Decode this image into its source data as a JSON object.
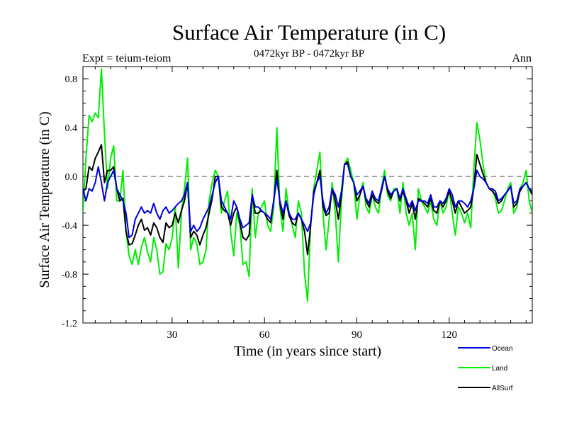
{
  "chart_data": {
    "type": "line",
    "title": "Surface Air Temperature (in C)",
    "subtitle": "0472kyr BP - 0472kyr BP",
    "expt_label": "Expt = teium-teiom",
    "season_label": "Ann",
    "xlabel": "Time (in years since start)",
    "ylabel": "Surface Air Temperature (in C)",
    "xlim": [
      1,
      147
    ],
    "ylim": [
      -1.2,
      0.9
    ],
    "x_ticks": [
      30,
      60,
      90,
      120
    ],
    "y_ticks": [
      -1.2,
      -0.8,
      -0.4,
      0.0,
      0.4,
      0.8
    ],
    "y_tick_labels": [
      "-1.2",
      "-0.8",
      "-0.4",
      "0.0",
      "0.4",
      "0.8"
    ],
    "x_tick_labels": [
      "30",
      "60",
      "90",
      "120"
    ],
    "reference_line": 0.0,
    "x": [
      1,
      2,
      3,
      4,
      5,
      6,
      7,
      8,
      9,
      10,
      11,
      12,
      13,
      14,
      15,
      16,
      17,
      18,
      19,
      20,
      21,
      22,
      23,
      24,
      25,
      26,
      27,
      28,
      29,
      30,
      31,
      32,
      33,
      34,
      35,
      36,
      37,
      38,
      39,
      40,
      41,
      42,
      43,
      44,
      45,
      46,
      47,
      48,
      49,
      50,
      51,
      52,
      53,
      54,
      55,
      56,
      57,
      58,
      59,
      60,
      61,
      62,
      63,
      64,
      65,
      66,
      67,
      68,
      69,
      70,
      71,
      72,
      73,
      74,
      75,
      76,
      77,
      78,
      79,
      80,
      81,
      82,
      83,
      84,
      85,
      86,
      87,
      88,
      89,
      90,
      91,
      92,
      93,
      94,
      95,
      96,
      97,
      98,
      99,
      100,
      101,
      102,
      103,
      104,
      105,
      106,
      107,
      108,
      109,
      110,
      111,
      112,
      113,
      114,
      115,
      116,
      117,
      118,
      119,
      120,
      121,
      122,
      123,
      124,
      125,
      126,
      127,
      128,
      129,
      130,
      131,
      132,
      133,
      134,
      135,
      136,
      137,
      138,
      139,
      140,
      141,
      142,
      143,
      144,
      145,
      146,
      147
    ],
    "series": [
      {
        "name": "Land",
        "color": "#00ee00",
        "values": [
          -0.3,
          0.15,
          0.5,
          0.45,
          0.52,
          0.48,
          0.88,
          0.35,
          -0.1,
          0.15,
          0.25,
          -0.2,
          -0.2,
          0.05,
          -0.45,
          -0.65,
          -0.72,
          -0.6,
          -0.72,
          -0.58,
          -0.5,
          -0.62,
          -0.7,
          -0.5,
          -0.6,
          -0.8,
          -0.78,
          -0.55,
          -0.6,
          -0.5,
          -0.25,
          -0.75,
          -0.3,
          -0.1,
          0.15,
          -0.6,
          -0.5,
          -0.55,
          -0.72,
          -0.7,
          -0.6,
          -0.2,
          -0.05,
          0.05,
          0.0,
          -0.3,
          -0.2,
          -0.12,
          -0.45,
          -0.65,
          -0.3,
          -0.4,
          -0.72,
          -0.7,
          -0.82,
          -0.1,
          -0.5,
          -0.3,
          -0.25,
          -0.2,
          -0.4,
          -0.45,
          -0.25,
          0.4,
          -0.25,
          -0.45,
          -0.1,
          -0.3,
          -0.4,
          -0.5,
          -0.2,
          -0.3,
          -0.8,
          -1.02,
          -0.4,
          -0.1,
          0.05,
          0.2,
          -0.3,
          -0.6,
          -0.35,
          -0.05,
          -0.3,
          -0.7,
          -0.2,
          0.1,
          0.15,
          0.05,
          -0.05,
          -0.35,
          -0.15,
          -0.05,
          -0.25,
          -0.3,
          -0.15,
          -0.25,
          -0.3,
          -0.1,
          0.05,
          -0.15,
          -0.2,
          -0.1,
          -0.1,
          -0.3,
          -0.05,
          -0.3,
          -0.4,
          -0.3,
          -0.6,
          -0.1,
          -0.2,
          -0.25,
          -0.3,
          -0.2,
          -0.35,
          -0.4,
          -0.2,
          -0.3,
          -0.25,
          -0.1,
          -0.3,
          -0.48,
          -0.25,
          -0.3,
          -0.38,
          -0.3,
          -0.42,
          0.05,
          0.44,
          0.3,
          0.1,
          -0.05,
          -0.1,
          -0.1,
          -0.18,
          -0.3,
          -0.28,
          -0.2,
          -0.1,
          -0.05,
          -0.3,
          -0.25,
          -0.1,
          -0.05,
          0.05,
          -0.2,
          -0.3
        ]
      },
      {
        "name": "AllSurf",
        "color": "#000000",
        "values": [
          -0.12,
          -0.1,
          0.08,
          0.05,
          0.15,
          0.2,
          0.26,
          -0.05,
          0.05,
          0.05,
          0.08,
          -0.1,
          -0.2,
          -0.18,
          -0.45,
          -0.56,
          -0.55,
          -0.48,
          -0.4,
          -0.35,
          -0.44,
          -0.42,
          -0.48,
          -0.38,
          -0.42,
          -0.5,
          -0.54,
          -0.38,
          -0.42,
          -0.4,
          -0.3,
          -0.38,
          -0.28,
          -0.2,
          -0.05,
          -0.5,
          -0.45,
          -0.48,
          -0.56,
          -0.48,
          -0.42,
          -0.3,
          -0.18,
          0.0,
          0.0,
          -0.25,
          -0.28,
          -0.3,
          -0.4,
          -0.3,
          -0.25,
          -0.38,
          -0.5,
          -0.52,
          -0.48,
          -0.15,
          -0.3,
          -0.3,
          -0.28,
          -0.3,
          -0.35,
          -0.38,
          -0.2,
          0.05,
          -0.22,
          -0.35,
          -0.2,
          -0.32,
          -0.38,
          -0.4,
          -0.3,
          -0.35,
          -0.45,
          -0.64,
          -0.4,
          -0.12,
          -0.05,
          0.05,
          -0.25,
          -0.32,
          -0.3,
          -0.1,
          -0.2,
          -0.35,
          -0.15,
          0.1,
          0.12,
          0.0,
          -0.05,
          -0.2,
          -0.15,
          -0.08,
          -0.2,
          -0.25,
          -0.15,
          -0.2,
          -0.22,
          -0.12,
          0.0,
          -0.12,
          -0.18,
          -0.12,
          -0.1,
          -0.2,
          -0.12,
          -0.2,
          -0.3,
          -0.22,
          -0.35,
          -0.18,
          -0.2,
          -0.22,
          -0.25,
          -0.18,
          -0.28,
          -0.3,
          -0.2,
          -0.25,
          -0.2,
          -0.12,
          -0.2,
          -0.3,
          -0.2,
          -0.25,
          -0.3,
          -0.28,
          -0.25,
          -0.1,
          0.18,
          0.1,
          0.02,
          -0.05,
          -0.1,
          -0.12,
          -0.15,
          -0.22,
          -0.2,
          -0.15,
          -0.12,
          -0.08,
          -0.25,
          -0.22,
          -0.12,
          -0.08,
          -0.05,
          -0.1,
          -0.15
        ]
      },
      {
        "name": "Ocean",
        "color": "#0000dd",
        "values": [
          -0.1,
          -0.2,
          -0.1,
          -0.12,
          -0.05,
          0.08,
          -0.05,
          -0.2,
          -0.05,
          0.0,
          0.05,
          -0.1,
          -0.15,
          -0.2,
          -0.3,
          -0.5,
          -0.48,
          -0.35,
          -0.3,
          -0.25,
          -0.3,
          -0.28,
          -0.3,
          -0.22,
          -0.3,
          -0.35,
          -0.28,
          -0.25,
          -0.3,
          -0.28,
          -0.25,
          -0.22,
          -0.2,
          -0.15,
          -0.05,
          -0.45,
          -0.4,
          -0.45,
          -0.42,
          -0.35,
          -0.3,
          -0.25,
          -0.15,
          -0.05,
          0.0,
          -0.2,
          -0.25,
          -0.3,
          -0.35,
          -0.2,
          -0.25,
          -0.35,
          -0.42,
          -0.4,
          -0.38,
          -0.15,
          -0.25,
          -0.25,
          -0.28,
          -0.3,
          -0.32,
          -0.35,
          -0.2,
          -0.02,
          -0.2,
          -0.3,
          -0.2,
          -0.3,
          -0.35,
          -0.35,
          -0.3,
          -0.35,
          -0.4,
          -0.45,
          -0.38,
          -0.15,
          -0.05,
          0.0,
          -0.2,
          -0.3,
          -0.25,
          -0.1,
          -0.15,
          -0.25,
          -0.12,
          0.1,
          0.1,
          0.0,
          -0.05,
          -0.15,
          -0.12,
          -0.08,
          -0.18,
          -0.22,
          -0.12,
          -0.18,
          -0.2,
          -0.1,
          0.0,
          -0.1,
          -0.15,
          -0.12,
          -0.1,
          -0.18,
          -0.1,
          -0.18,
          -0.25,
          -0.2,
          -0.28,
          -0.2,
          -0.2,
          -0.2,
          -0.22,
          -0.15,
          -0.25,
          -0.25,
          -0.2,
          -0.22,
          -0.18,
          -0.1,
          -0.15,
          -0.25,
          -0.2,
          -0.2,
          -0.22,
          -0.25,
          -0.2,
          -0.1,
          0.05,
          0.0,
          -0.02,
          -0.05,
          -0.1,
          -0.1,
          -0.12,
          -0.2,
          -0.18,
          -0.15,
          -0.12,
          -0.08,
          -0.22,
          -0.2,
          -0.1,
          -0.08,
          -0.05,
          -0.1,
          -0.12
        ]
      }
    ],
    "legend": [
      {
        "name": "Ocean",
        "color": "#0000dd"
      },
      {
        "name": "Land",
        "color": "#00ee00"
      },
      {
        "name": "AllSurf",
        "color": "#000000"
      }
    ]
  }
}
